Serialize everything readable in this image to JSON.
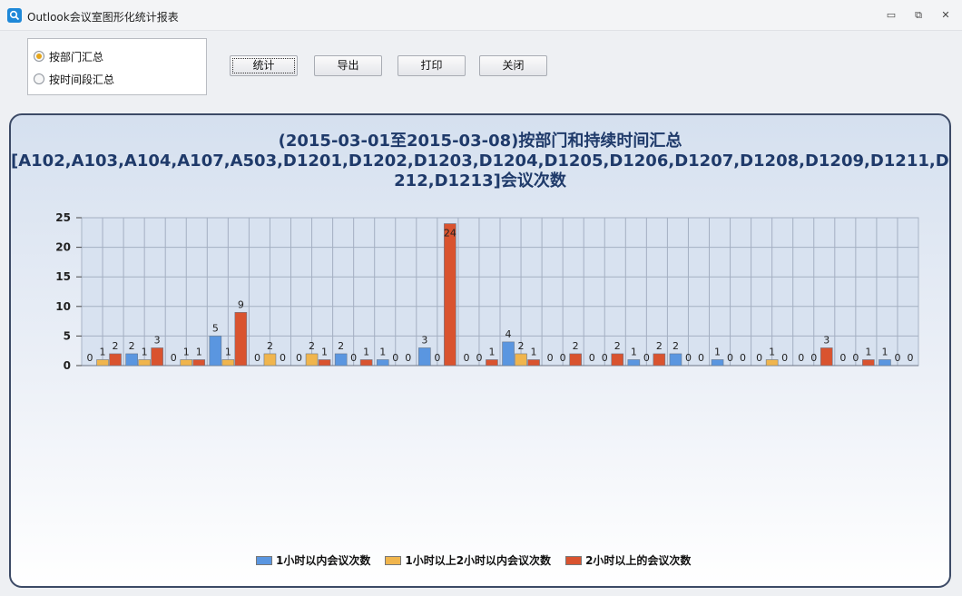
{
  "window": {
    "title": "Outlook会议室图形化统计报表",
    "minimize_label": "▭",
    "restore_label": "⧉",
    "close_label": "✕"
  },
  "options": {
    "by_department": "按部门汇总",
    "by_time_period": "按时间段汇总",
    "selected": "by_department"
  },
  "buttons": {
    "stats": "统计",
    "export": "导出",
    "print": "打印",
    "close": "关闭"
  },
  "chart_data": {
    "type": "bar",
    "title_lines": [
      "(2015-03-01至2015-03-08)按部门和持续时间汇总",
      "[A102,A103,A104,A107,A503,D1201,D1202,D1203,D1204,D1205,D1206,D1207,D1208,D1209,D1211,D1",
      "212,D1213]会议次数"
    ],
    "ylim": [
      0,
      25
    ],
    "yticks": [
      0,
      5,
      10,
      15,
      20,
      25
    ],
    "grid": true,
    "legend_position": "bottom",
    "colors": [
      "#5a96e0",
      "#f0b54d",
      "#d9532f"
    ],
    "series": [
      {
        "name": "1小时以内会议次数",
        "values": [
          0,
          2,
          0,
          5,
          0,
          0,
          2,
          1,
          3,
          0,
          4,
          0,
          0,
          1,
          2,
          1,
          0,
          0,
          0,
          1
        ]
      },
      {
        "name": "1小时以上2小时以内会议次数",
        "values": [
          1,
          1,
          1,
          1,
          2,
          2,
          0,
          0,
          0,
          0,
          2,
          0,
          0,
          0,
          0,
          0,
          1,
          0,
          0,
          0
        ]
      },
      {
        "name": "2小时以上的会议次数",
        "values": [
          2,
          3,
          1,
          9,
          0,
          1,
          1,
          0,
          24,
          1,
          1,
          2,
          2,
          2,
          0,
          0,
          0,
          3,
          1,
          0
        ]
      }
    ]
  }
}
